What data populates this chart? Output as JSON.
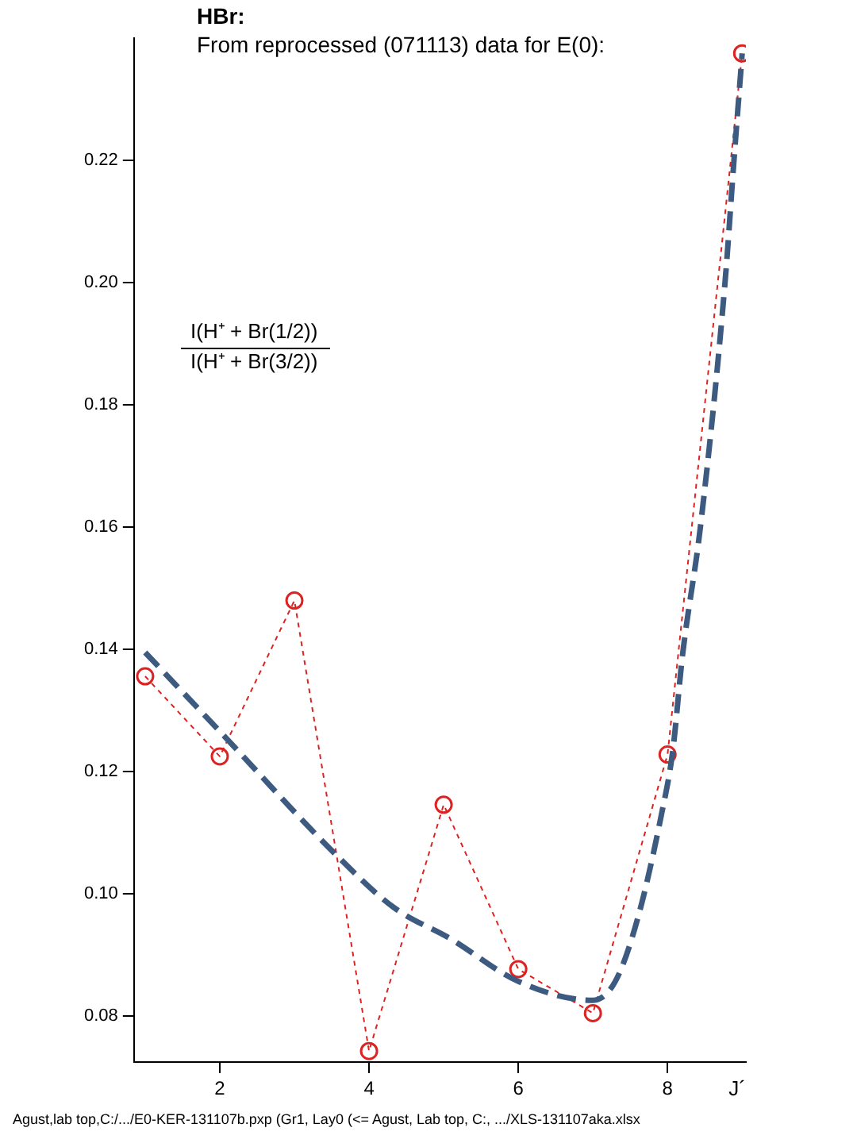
{
  "chart_data": {
    "type": "line",
    "title": "HBr:",
    "subtitle": "From reprocessed (071113) data for E(0):",
    "xlabel": "J´",
    "annotations": [
      "I(H⁺ + Br(1/2))",
      "I(H⁺ + Br(3/2))",
      "Agust,lab top,C:/.../E0-KER-131107b.pxp  (Gr1, Lay0 (<= Agust, Lab top, C:, .../XLS-131107aka.xlsx"
    ],
    "x": [
      1,
      2,
      3,
      4,
      5,
      6,
      7,
      8,
      9
    ],
    "series": [
      {
        "color": "#dd2222",
        "marker": "circle",
        "line_style": "dashed",
        "values": [
          0.1356,
          0.1225,
          0.148,
          0.0743,
          0.1146,
          0.0877,
          0.0805,
          0.1228,
          0.2375
        ]
      },
      {
        "color": "#3d5a80",
        "marker": "none",
        "line_style": "dashed",
        "x": [
          1,
          2,
          3.55,
          4.33,
          5.1,
          6,
          7,
          7.3,
          7.6,
          7.92,
          8.07,
          8.2,
          8.44,
          8.77,
          8.89,
          9
        ],
        "values": [
          0.1395,
          0.1266,
          0.1065,
          0.0978,
          0.0926,
          0.0857,
          0.0826,
          0.0857,
          0.096,
          0.1131,
          0.1234,
          0.139,
          0.16,
          0.2,
          0.22,
          0.2375
        ]
      }
    ],
    "xlim": [
      0.85,
      9.05
    ],
    "xticks": [
      2,
      4,
      6,
      8
    ],
    "ylim": [
      0.0725,
      0.24
    ],
    "yticks": [
      0.08,
      {
        "value": 0.1,
        "label": "0.10"
      },
      0.12,
      0.14,
      0.16,
      0.18,
      {
        "value": 0.2,
        "label": "0.20"
      },
      0.22
    ],
    "grid": false,
    "legend": false
  }
}
